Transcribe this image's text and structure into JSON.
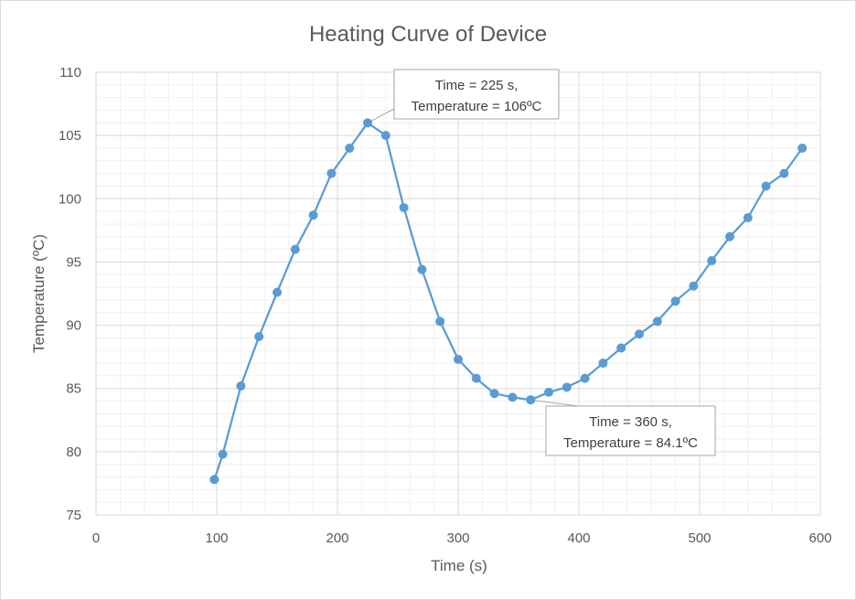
{
  "chart_data": {
    "type": "scatter",
    "title": "Heating Curve of Device",
    "xlabel": "Time (s)",
    "ylabel": "Temperature (ºC)",
    "xlim": [
      0,
      600
    ],
    "ylim": [
      75,
      110
    ],
    "x_ticks": [
      0,
      100,
      200,
      300,
      400,
      500,
      600
    ],
    "y_ticks": [
      75,
      80,
      85,
      90,
      95,
      100,
      105,
      110
    ],
    "grid": true,
    "legend": "none",
    "line_color": "#5b9bd5",
    "marker_color": "#5b9bd5",
    "series": [
      {
        "x": [
          98,
          105,
          120,
          135,
          150,
          165,
          180,
          195,
          210,
          225,
          240,
          255,
          270,
          285,
          300,
          315,
          330,
          345,
          360,
          375,
          390,
          405,
          420,
          435,
          450,
          465,
          480,
          495,
          510,
          525,
          540,
          555,
          570,
          585
        ],
        "y": [
          77.8,
          79.8,
          85.2,
          89.1,
          92.6,
          96.0,
          98.7,
          102.0,
          104.0,
          106.0,
          105.0,
          99.3,
          94.4,
          90.3,
          87.3,
          85.8,
          84.6,
          84.3,
          84.1,
          84.7,
          85.1,
          85.8,
          87.0,
          88.2,
          89.3,
          90.3,
          91.9,
          93.1,
          95.1,
          97.0,
          98.5,
          101.0,
          102.0,
          104.0
        ]
      }
    ],
    "annotations": [
      {
        "x": 225,
        "y": 106,
        "lines": [
          "Time = 225 s,",
          "Temperature = 106ºC"
        ]
      },
      {
        "x": 360,
        "y": 84.1,
        "lines": [
          "Time = 360 s,",
          "Temperature = 84.1ºC"
        ]
      }
    ]
  }
}
